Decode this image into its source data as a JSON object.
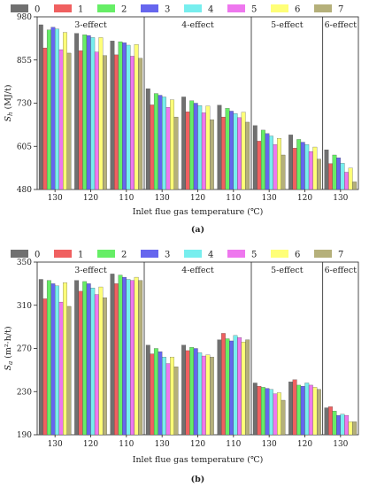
{
  "series_names": [
    "0",
    "1",
    "2",
    "3",
    "4",
    "5",
    "6",
    "7"
  ],
  "colors": [
    "#707070",
    "#f06060",
    "#66ee66",
    "#6666ee",
    "#77eeee",
    "#ee77ee",
    "#ffff77",
    "#b5b07a"
  ],
  "chart_data": [
    {
      "type": "bar",
      "panel_label": "(a)",
      "ylabel": "S",
      "ylabel_sub": "h",
      "ylabel_unit": "(MJ/t)",
      "xlabel": "Inlet flue gas temperature (℃)",
      "ylim": [
        480,
        980
      ],
      "yticks": [
        480,
        605,
        730,
        855,
        980
      ],
      "categories": [
        "130",
        "120",
        "110",
        "130",
        "120",
        "110",
        "130",
        "120",
        "130"
      ],
      "groups": [
        {
          "label": "3-effect",
          "start": 0,
          "end": 3
        },
        {
          "label": "4-effect",
          "start": 3,
          "end": 6
        },
        {
          "label": "5-effect",
          "start": 6,
          "end": 8
        },
        {
          "label": "6-effect",
          "start": 8,
          "end": 9
        }
      ],
      "values": [
        [
          957,
          890,
          942,
          950,
          945,
          885,
          935,
          875
        ],
        [
          932,
          882,
          928,
          926,
          920,
          878,
          920,
          868
        ],
        [
          910,
          870,
          908,
          905,
          898,
          866,
          900,
          860
        ],
        [
          772,
          725,
          758,
          753,
          748,
          718,
          740,
          690
        ],
        [
          748,
          705,
          737,
          730,
          723,
          702,
          722,
          682
        ],
        [
          724,
          690,
          715,
          707,
          700,
          688,
          704,
          675
        ],
        [
          665,
          620,
          652,
          642,
          635,
          610,
          628,
          580
        ],
        [
          638,
          600,
          625,
          617,
          610,
          590,
          603,
          568
        ],
        [
          595,
          555,
          580,
          572,
          556,
          530,
          542,
          502
        ]
      ]
    },
    {
      "type": "bar",
      "panel_label": "(b)",
      "ylabel": "S",
      "ylabel_sub": "a",
      "ylabel_unit": "(m²·h/t)",
      "xlabel": "Inlet flue gas temperature (℃)",
      "ylim": [
        190,
        350
      ],
      "yticks": [
        190,
        230,
        270,
        310,
        350
      ],
      "categories": [
        "130",
        "120",
        "110",
        "130",
        "120",
        "110",
        "130",
        "120",
        "130"
      ],
      "groups": [
        {
          "label": "3-effect",
          "start": 0,
          "end": 3
        },
        {
          "label": "4-effect",
          "start": 3,
          "end": 6
        },
        {
          "label": "5-effect",
          "start": 6,
          "end": 8
        },
        {
          "label": "6-effect",
          "start": 8,
          "end": 9
        }
      ],
      "values": [
        [
          334,
          316,
          333,
          330,
          328,
          313,
          331,
          309
        ],
        [
          333,
          323,
          332,
          330,
          326,
          320,
          327,
          317
        ],
        [
          339,
          330,
          338,
          336,
          334,
          333,
          336,
          333
        ],
        [
          273,
          265,
          270,
          267,
          262,
          256,
          262,
          253
        ],
        [
          273,
          268,
          271,
          270,
          266,
          263,
          264,
          262
        ],
        [
          278,
          284,
          279,
          277,
          282,
          280,
          276,
          278
        ],
        [
          238,
          235,
          234,
          233,
          232,
          228,
          229,
          222
        ],
        [
          239,
          241,
          236,
          235,
          238,
          236,
          234,
          232
        ],
        [
          215,
          216,
          212,
          208,
          209,
          208,
          202,
          202
        ]
      ]
    }
  ]
}
